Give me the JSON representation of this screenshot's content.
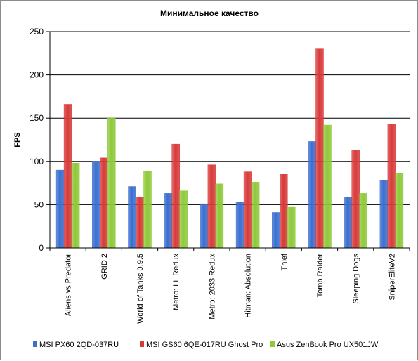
{
  "chart_data": {
    "type": "bar",
    "title": "Минимальное  качество",
    "ylabel": "FPS",
    "xlabel": "",
    "ylim": [
      0,
      250
    ],
    "yticks": [
      0,
      50,
      100,
      150,
      200,
      250
    ],
    "grid": true,
    "legend_position": "bottom",
    "categories": [
      "Aliens vs Predator",
      "GRID 2",
      "World of Tanks 0.9.5",
      "Metro: LL Redux",
      "Metro: 2033 Redux",
      "Hitman: Absolution",
      "Thief",
      "Tomb Raider",
      "Sleeping Dogs",
      "SniperEliteV2"
    ],
    "series": [
      {
        "name": "MSI PX60 2QD-037RU",
        "color": "#3a6fd0",
        "values": [
          90,
          100,
          71,
          63,
          51,
          53,
          41,
          123,
          59,
          78
        ]
      },
      {
        "name": "MSI GS60 6QE-017RU Ghost Pro",
        "color": "#d83a3a",
        "values": [
          166,
          104,
          59,
          120,
          96,
          88,
          85,
          230,
          113,
          143
        ]
      },
      {
        "name": "Asus ZenBook Pro UX501JW",
        "color": "#8fc93a",
        "values": [
          98,
          150,
          89,
          66,
          74,
          76,
          47,
          142,
          63,
          86
        ]
      }
    ]
  }
}
